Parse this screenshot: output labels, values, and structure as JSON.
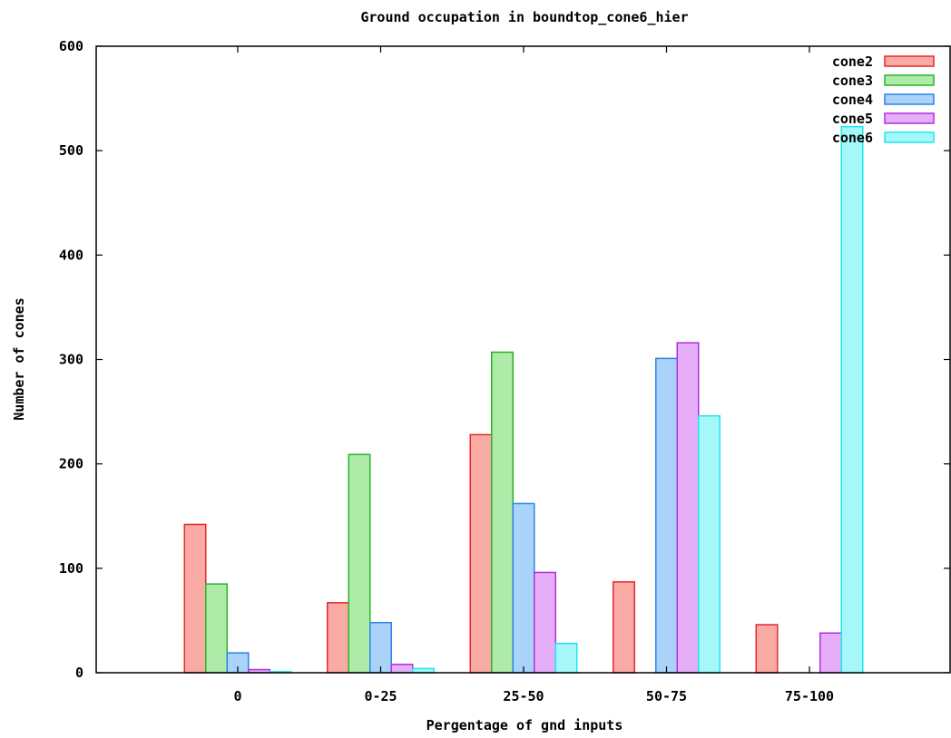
{
  "chart_data": {
    "type": "bar",
    "title": "Ground occupation in boundtop_cone6_hier",
    "xlabel": "Pergentage of gnd inputs",
    "ylabel": "Number of cones",
    "categories": [
      "0",
      "0-25",
      "25-50",
      "50-75",
      "75-100"
    ],
    "ylim": [
      0,
      600
    ],
    "yticks": [
      0,
      100,
      200,
      300,
      400,
      500,
      600
    ],
    "grid": false,
    "legend_position": "top-right",
    "series": [
      {
        "name": "cone2",
        "values": [
          142,
          67,
          228,
          87,
          46
        ],
        "color": "#e8282a",
        "fill": "#f9aaa5"
      },
      {
        "name": "cone3",
        "values": [
          85,
          209,
          307,
          0,
          0
        ],
        "color": "#28b428",
        "fill": "#aeeaa8"
      },
      {
        "name": "cone4",
        "values": [
          19,
          48,
          162,
          301,
          0
        ],
        "color": "#2a83e6",
        "fill": "#aad3f9"
      },
      {
        "name": "cone5",
        "values": [
          3,
          8,
          96,
          316,
          38
        ],
        "color": "#b02ee0",
        "fill": "#e6aef9"
      },
      {
        "name": "cone6",
        "values": [
          1,
          4,
          28,
          246,
          523
        ],
        "color": "#1ee6ee",
        "fill": "#a5f7fa"
      }
    ]
  }
}
